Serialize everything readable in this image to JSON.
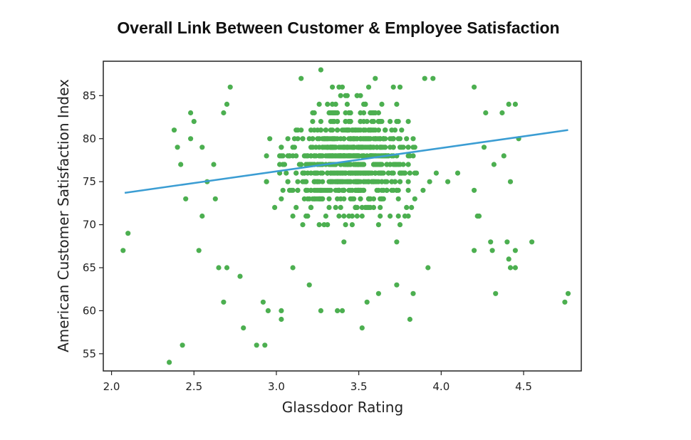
{
  "chart_data": {
    "type": "scatter",
    "title": "Overall Link Between Customer & Employee Satisfaction",
    "xlabel": "Glassdoor Rating",
    "ylabel": "American Customer Satisfaction Index",
    "xlim": [
      1.95,
      4.85
    ],
    "ylim": [
      53,
      89
    ],
    "xticks": [
      2.0,
      2.5,
      3.0,
      3.5,
      4.0,
      4.5
    ],
    "xtick_labels": [
      "2.0",
      "2.5",
      "3.0",
      "3.5",
      "4.0",
      "4.5"
    ],
    "yticks": [
      55,
      60,
      65,
      70,
      75,
      80,
      85
    ],
    "ytick_labels": [
      "55",
      "60",
      "65",
      "70",
      "75",
      "80",
      "85"
    ],
    "grid": false,
    "point_color": "#4caf50",
    "line_color": "#3b9dd3",
    "trend_line": {
      "x": [
        2.08,
        4.77
      ],
      "y": [
        73.7,
        81.0
      ]
    },
    "outliers": [
      [
        2.07,
        67
      ],
      [
        2.1,
        69
      ],
      [
        2.35,
        54
      ],
      [
        2.43,
        56
      ],
      [
        2.38,
        81
      ],
      [
        2.4,
        79
      ],
      [
        2.42,
        77
      ],
      [
        2.45,
        73
      ],
      [
        2.53,
        67
      ],
      [
        2.55,
        71
      ],
      [
        2.65,
        65
      ],
      [
        2.68,
        61
      ],
      [
        2.7,
        65
      ],
      [
        2.78,
        64
      ],
      [
        2.8,
        58
      ],
      [
        2.88,
        56
      ],
      [
        2.93,
        56
      ],
      [
        2.92,
        61
      ],
      [
        2.95,
        60
      ],
      [
        3.03,
        59
      ],
      [
        3.03,
        60
      ],
      [
        3.1,
        65
      ],
      [
        3.2,
        63
      ],
      [
        3.27,
        60
      ],
      [
        3.37,
        60
      ],
      [
        3.4,
        60
      ],
      [
        3.52,
        58
      ],
      [
        3.55,
        61
      ],
      [
        3.62,
        62
      ],
      [
        3.73,
        63
      ],
      [
        3.81,
        59
      ],
      [
        3.83,
        62
      ],
      [
        3.92,
        65
      ],
      [
        4.2,
        67
      ],
      [
        4.23,
        71
      ],
      [
        4.33,
        62
      ],
      [
        4.3,
        68
      ],
      [
        4.31,
        67
      ],
      [
        4.4,
        68
      ],
      [
        4.41,
        66
      ],
      [
        4.42,
        65
      ],
      [
        4.45,
        65
      ],
      [
        4.45,
        67
      ],
      [
        4.55,
        68
      ],
      [
        4.42,
        75
      ],
      [
        4.32,
        77
      ],
      [
        4.26,
        79
      ],
      [
        4.47,
        80
      ],
      [
        4.38,
        78
      ],
      [
        4.75,
        61
      ],
      [
        4.77,
        62
      ],
      [
        4.41,
        84
      ],
      [
        4.45,
        84
      ],
      [
        4.2,
        74
      ],
      [
        4.22,
        71
      ],
      [
        4.1,
        76
      ],
      [
        2.58,
        75
      ],
      [
        2.62,
        77
      ],
      [
        2.63,
        73
      ],
      [
        2.55,
        79
      ],
      [
        2.48,
        83
      ],
      [
        2.5,
        82
      ],
      [
        2.48,
        80
      ],
      [
        2.72,
        86
      ],
      [
        2.7,
        84
      ],
      [
        2.68,
        83
      ],
      [
        3.27,
        88
      ],
      [
        3.15,
        87
      ],
      [
        3.6,
        87
      ],
      [
        3.9,
        87
      ],
      [
        3.95,
        87
      ],
      [
        4.2,
        86
      ],
      [
        4.27,
        83
      ],
      [
        4.37,
        83
      ]
    ],
    "cloud_points": 820,
    "cloud_ranges": {
      "x": [
        2.65,
        4.25
      ],
      "y": [
        63,
        86
      ]
    }
  }
}
